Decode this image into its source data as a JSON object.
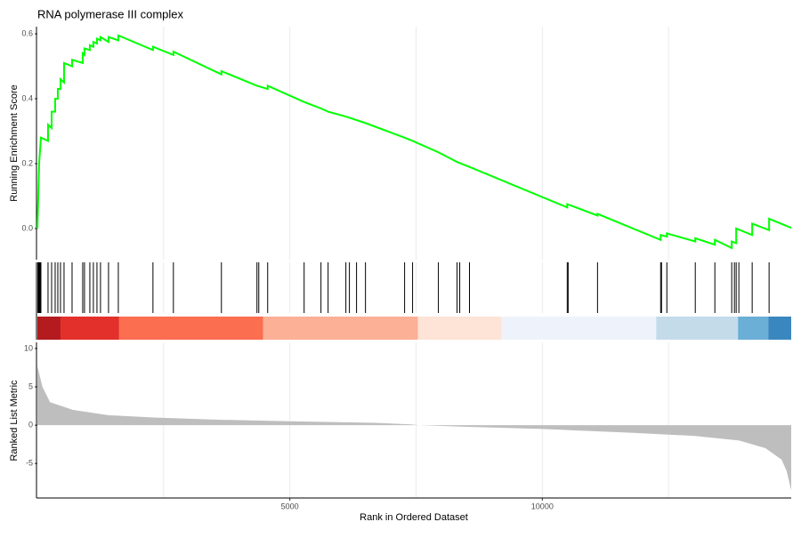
{
  "chart_data": [
    {
      "type": "line",
      "title": "RNA polymerase III complex",
      "ylabel": "Running Enrichment Score",
      "color": "#00ff00",
      "xlim": [
        0,
        14930
      ],
      "ylim": [
        -0.096,
        0.622
      ],
      "yticks": [
        {
          "value": 0,
          "label": "0.0"
        },
        0.2,
        0.4,
        0.6
      ],
      "grid_x": [
        2500,
        5000,
        7500,
        10000,
        12500
      ],
      "x": [
        0,
        18,
        35,
        70,
        211,
        211,
        282,
        282,
        352,
        352,
        405,
        405,
        458,
        458,
        528,
        528,
        687,
        687,
        898,
        898,
        933,
        933,
        1039,
        1039,
        1109,
        1109,
        1180,
        1180,
        1250,
        1250,
        1409,
        1409,
        1603,
        1603,
        2289,
        2289,
        2694,
        2694,
        3645,
        3645,
        4349,
        4561,
        4561,
        5283,
        5617,
        5758,
        6110,
        6498,
        7273,
        7431,
        7942,
        8312,
        8558,
        10494,
        10494,
        11094,
        11094,
        12344,
        12344,
        12467,
        12467,
        13030,
        13030,
        13418,
        13418,
        13752,
        13752,
        13840,
        13840,
        14157,
        14157,
        14492,
        14492,
        14930
      ],
      "values": [
        0,
        0.1,
        0.2,
        0.28,
        0.27,
        0.32,
        0.31,
        0.36,
        0.36,
        0.4,
        0.4,
        0.43,
        0.43,
        0.46,
        0.45,
        0.51,
        0.5,
        0.52,
        0.51,
        0.54,
        0.535,
        0.555,
        0.55,
        0.565,
        0.56,
        0.575,
        0.57,
        0.585,
        0.58,
        0.59,
        0.575,
        0.59,
        0.58,
        0.595,
        0.55,
        0.56,
        0.535,
        0.545,
        0.475,
        0.485,
        0.44,
        0.43,
        0.44,
        0.39,
        0.37,
        0.36,
        0.345,
        0.325,
        0.28,
        0.27,
        0.235,
        0.205,
        0.19,
        0.065,
        0.075,
        0.04,
        0.045,
        -0.035,
        -0.02,
        -0.025,
        -0.015,
        -0.04,
        -0.03,
        -0.05,
        -0.035,
        -0.06,
        -0.04,
        -0.045,
        0,
        -0.02,
        0.015,
        -0.005,
        0.03,
        0.002
      ]
    },
    {
      "type": "rug",
      "xlim": [
        0,
        14930
      ],
      "grid_x": [
        2500,
        5000,
        7500,
        10000,
        12500
      ],
      "x": [
        10,
        18,
        30,
        35,
        53,
        70,
        211,
        282,
        352,
        405,
        458,
        528,
        687,
        898,
        933,
        1039,
        1109,
        1180,
        1250,
        1409,
        1603,
        2289,
        2694,
        3645,
        4349,
        4385,
        4561,
        5283,
        5617,
        5758,
        6110,
        6180,
        6321,
        6498,
        7273,
        7431,
        7942,
        8312,
        8365,
        8558,
        10494,
        10512,
        11094,
        12344,
        12362,
        12467,
        13030,
        13418,
        13752,
        13805,
        13840,
        13893,
        14157,
        14492
      ],
      "bands": [
        {
          "start": 0,
          "end": 458,
          "color": "#b31b1f"
        },
        {
          "start": 458,
          "end": 1620,
          "color": "#e3302a"
        },
        {
          "start": 1620,
          "end": 4473,
          "color": "#fb6e50"
        },
        {
          "start": 4473,
          "end": 7537,
          "color": "#fcb096"
        },
        {
          "start": 7537,
          "end": 9192,
          "color": "#fee3d7"
        },
        {
          "start": 9192,
          "end": 12256,
          "color": "#eef3fb"
        },
        {
          "start": 12256,
          "end": 13876,
          "color": "#c4dbea"
        },
        {
          "start": 13876,
          "end": 14475,
          "color": "#6baed6"
        },
        {
          "start": 14475,
          "end": 14930,
          "color": "#3a87c0"
        }
      ]
    },
    {
      "type": "area",
      "xlabel": "Rank in Ordered Dataset",
      "ylabel": "Ranked List Metric",
      "color": "#bebebe",
      "xlim": [
        0,
        14930
      ],
      "ylim": [
        -9.5,
        10.8
      ],
      "xticks": [
        5000,
        10000
      ],
      "yticks": [
        -5,
        0,
        5,
        10
      ],
      "grid_x": [
        2500,
        5000,
        7500,
        10000,
        12500
      ],
      "x": [
        0,
        100,
        250,
        700,
        1400,
        2300,
        3650,
        5000,
        6700,
        7400,
        7560,
        8450,
        10000,
        11800,
        13000,
        13900,
        14420,
        14740,
        14840,
        14930
      ],
      "values": [
        7.7,
        5,
        3,
        2,
        1.3,
        1,
        0.7,
        0.5,
        0.3,
        0.1,
        0,
        -0.2,
        -0.5,
        -1,
        -1.4,
        -2,
        -3,
        -4.5,
        -6,
        -8.5
      ]
    }
  ]
}
